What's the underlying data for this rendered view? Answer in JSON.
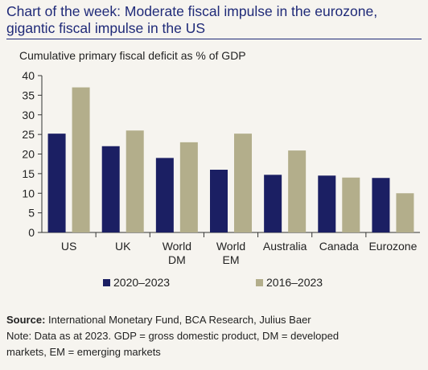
{
  "title_lines": [
    "Chart of the week: Moderate fiscal impulse in the eurozone,",
    "gigantic fiscal impulse in the US"
  ],
  "chart_data": {
    "type": "bar",
    "title": "Cumulative primary fiscal deficit as % of GDP",
    "categories": [
      [
        "US"
      ],
      [
        "UK"
      ],
      [
        "World",
        "DM"
      ],
      [
        "World",
        "EM"
      ],
      [
        "Australia"
      ],
      [
        "Canada"
      ],
      [
        "Eurozone"
      ]
    ],
    "series": [
      {
        "name": "2020–2023",
        "color": "#1b1f63",
        "values": [
          25.2,
          22,
          19,
          16,
          14.7,
          14.5,
          13.9
        ]
      },
      {
        "name": "2016–2023",
        "color": "#b3ae8b",
        "values": [
          37,
          26,
          23,
          25.2,
          20.9,
          14,
          10
        ]
      }
    ],
    "ylim": [
      0,
      40
    ],
    "yticks": [
      0,
      5,
      10,
      15,
      20,
      25,
      30,
      35,
      40
    ],
    "grid": false,
    "legend": "bottom"
  },
  "footer": {
    "source_label": "Source:",
    "source_text": " International Monetary Fund, BCA Research, Julius Baer",
    "note_line1": "Note: Data as at 2023. GDP = gross domestic product, DM = developed",
    "note_line2": "markets, EM = emerging markets"
  }
}
